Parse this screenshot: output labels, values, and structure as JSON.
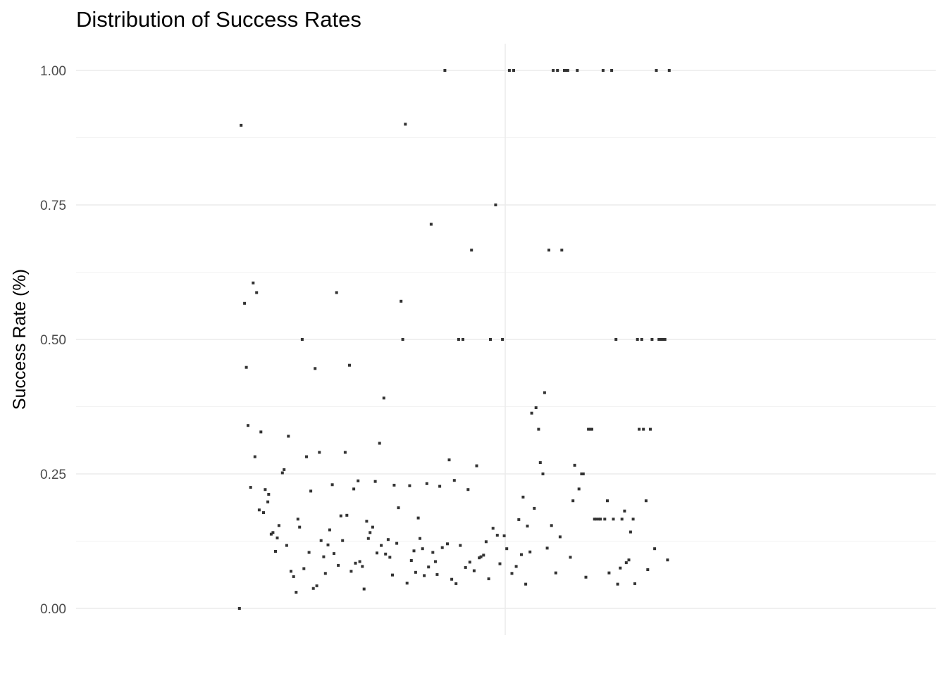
{
  "chart_data": {
    "type": "scatter",
    "title": "Distribution of Success Rates",
    "xlabel": "",
    "ylabel": "Success Rate (%)",
    "ylim": [
      -0.05,
      1.05
    ],
    "xlim": [
      0,
      1
    ],
    "y_ticks": [
      "0.00",
      "0.25",
      "0.50",
      "0.75",
      "1.00"
    ],
    "y_tick_values": [
      0,
      0.25,
      0.5,
      0.75,
      1
    ],
    "grid": true,
    "legend": "none",
    "point_color": "#333333",
    "x_note": "single jittered category; x values are jitter positions across the category width",
    "points": [
      [
        0.19,
        0.0
      ],
      [
        0.192,
        0.898
      ],
      [
        0.196,
        0.567
      ],
      [
        0.198,
        0.448
      ],
      [
        0.2,
        0.34
      ],
      [
        0.203,
        0.225
      ],
      [
        0.206,
        0.605
      ],
      [
        0.208,
        0.282
      ],
      [
        0.21,
        0.587
      ],
      [
        0.213,
        0.183
      ],
      [
        0.215,
        0.328
      ],
      [
        0.218,
        0.178
      ],
      [
        0.22,
        0.221
      ],
      [
        0.223,
        0.198
      ],
      [
        0.224,
        0.212
      ],
      [
        0.227,
        0.138
      ],
      [
        0.229,
        0.141
      ],
      [
        0.232,
        0.106
      ],
      [
        0.234,
        0.131
      ],
      [
        0.236,
        0.154
      ],
      [
        0.24,
        0.252
      ],
      [
        0.242,
        0.258
      ],
      [
        0.245,
        0.117
      ],
      [
        0.247,
        0.32
      ],
      [
        0.25,
        0.069
      ],
      [
        0.253,
        0.059
      ],
      [
        0.256,
        0.03
      ],
      [
        0.258,
        0.166
      ],
      [
        0.26,
        0.151
      ],
      [
        0.263,
        0.5
      ],
      [
        0.265,
        0.074
      ],
      [
        0.268,
        0.282
      ],
      [
        0.271,
        0.104
      ],
      [
        0.273,
        0.218
      ],
      [
        0.276,
        0.037
      ],
      [
        0.278,
        0.446
      ],
      [
        0.28,
        0.042
      ],
      [
        0.283,
        0.29
      ],
      [
        0.285,
        0.126
      ],
      [
        0.288,
        0.096
      ],
      [
        0.29,
        0.065
      ],
      [
        0.293,
        0.118
      ],
      [
        0.295,
        0.146
      ],
      [
        0.298,
        0.23
      ],
      [
        0.3,
        0.102
      ],
      [
        0.303,
        0.587
      ],
      [
        0.305,
        0.08
      ],
      [
        0.308,
        0.172
      ],
      [
        0.31,
        0.126
      ],
      [
        0.313,
        0.29
      ],
      [
        0.315,
        0.173
      ],
      [
        0.318,
        0.452
      ],
      [
        0.32,
        0.069
      ],
      [
        0.323,
        0.222
      ],
      [
        0.325,
        0.084
      ],
      [
        0.328,
        0.237
      ],
      [
        0.33,
        0.087
      ],
      [
        0.333,
        0.078
      ],
      [
        0.335,
        0.036
      ],
      [
        0.338,
        0.162
      ],
      [
        0.34,
        0.13
      ],
      [
        0.342,
        0.141
      ],
      [
        0.345,
        0.151
      ],
      [
        0.348,
        0.236
      ],
      [
        0.35,
        0.103
      ],
      [
        0.353,
        0.307
      ],
      [
        0.355,
        0.117
      ],
      [
        0.358,
        0.391
      ],
      [
        0.36,
        0.101
      ],
      [
        0.363,
        0.128
      ],
      [
        0.365,
        0.095
      ],
      [
        0.368,
        0.062
      ],
      [
        0.37,
        0.229
      ],
      [
        0.373,
        0.121
      ],
      [
        0.375,
        0.187
      ],
      [
        0.378,
        0.571
      ],
      [
        0.38,
        0.5
      ],
      [
        0.383,
        0.9
      ],
      [
        0.385,
        0.047
      ],
      [
        0.388,
        0.228
      ],
      [
        0.39,
        0.089
      ],
      [
        0.393,
        0.107
      ],
      [
        0.395,
        0.067
      ],
      [
        0.398,
        0.168
      ],
      [
        0.4,
        0.13
      ],
      [
        0.403,
        0.111
      ],
      [
        0.405,
        0.061
      ],
      [
        0.408,
        0.232
      ],
      [
        0.41,
        0.077
      ],
      [
        0.413,
        0.714
      ],
      [
        0.415,
        0.104
      ],
      [
        0.418,
        0.087
      ],
      [
        0.42,
        0.063
      ],
      [
        0.423,
        0.227
      ],
      [
        0.426,
        0.113
      ],
      [
        0.429,
        1.0
      ],
      [
        0.432,
        0.12
      ],
      [
        0.434,
        0.276
      ],
      [
        0.437,
        0.054
      ],
      [
        0.44,
        0.238
      ],
      [
        0.442,
        0.046
      ],
      [
        0.445,
        0.5
      ],
      [
        0.447,
        0.117
      ],
      [
        0.45,
        0.5
      ],
      [
        0.453,
        0.076
      ],
      [
        0.456,
        0.221
      ],
      [
        0.458,
        0.086
      ],
      [
        0.46,
        0.666
      ],
      [
        0.463,
        0.07
      ],
      [
        0.466,
        0.265
      ],
      [
        0.469,
        0.094
      ],
      [
        0.471,
        0.096
      ],
      [
        0.474,
        0.099
      ],
      [
        0.477,
        0.124
      ],
      [
        0.48,
        0.055
      ],
      [
        0.482,
        0.5
      ],
      [
        0.485,
        0.149
      ],
      [
        0.488,
        0.75
      ],
      [
        0.49,
        0.136
      ],
      [
        0.493,
        0.083
      ],
      [
        0.496,
        0.5
      ],
      [
        0.498,
        0.135
      ],
      [
        0.501,
        0.111
      ],
      [
        0.504,
        1.0
      ],
      [
        0.507,
        0.065
      ],
      [
        0.509,
        1.0
      ],
      [
        0.512,
        0.078
      ],
      [
        0.515,
        0.165
      ],
      [
        0.518,
        0.1
      ],
      [
        0.52,
        0.207
      ],
      [
        0.523,
        0.045
      ],
      [
        0.525,
        0.153
      ],
      [
        0.528,
        0.105
      ],
      [
        0.53,
        0.363
      ],
      [
        0.533,
        0.186
      ],
      [
        0.535,
        0.373
      ],
      [
        0.538,
        0.333
      ],
      [
        0.54,
        0.271
      ],
      [
        0.543,
        0.25
      ],
      [
        0.545,
        0.401
      ],
      [
        0.548,
        0.112
      ],
      [
        0.55,
        0.666
      ],
      [
        0.553,
        0.154
      ],
      [
        0.555,
        1.0
      ],
      [
        0.558,
        0.066
      ],
      [
        0.56,
        1.0
      ],
      [
        0.563,
        0.133
      ],
      [
        0.565,
        0.666
      ],
      [
        0.568,
        1.0
      ],
      [
        0.57,
        1.0
      ],
      [
        0.572,
        1.0
      ],
      [
        0.575,
        0.095
      ],
      [
        0.578,
        0.2
      ],
      [
        0.58,
        0.266
      ],
      [
        0.583,
        1.0
      ],
      [
        0.585,
        0.222
      ],
      [
        0.588,
        0.25
      ],
      [
        0.59,
        0.25
      ],
      [
        0.593,
        0.058
      ],
      [
        0.596,
        0.333
      ],
      [
        0.598,
        0.333
      ],
      [
        0.6,
        0.333
      ],
      [
        0.603,
        0.166
      ],
      [
        0.605,
        0.166
      ],
      [
        0.608,
        0.166
      ],
      [
        0.61,
        0.166
      ],
      [
        0.613,
        1.0
      ],
      [
        0.615,
        0.166
      ],
      [
        0.618,
        0.2
      ],
      [
        0.62,
        0.066
      ],
      [
        0.623,
        1.0
      ],
      [
        0.625,
        0.166
      ],
      [
        0.628,
        0.5
      ],
      [
        0.63,
        0.045
      ],
      [
        0.633,
        0.075
      ],
      [
        0.635,
        0.166
      ],
      [
        0.638,
        0.181
      ],
      [
        0.64,
        0.085
      ],
      [
        0.643,
        0.09
      ],
      [
        0.645,
        0.142
      ],
      [
        0.648,
        0.166
      ],
      [
        0.65,
        0.046
      ],
      [
        0.653,
        0.5
      ],
      [
        0.655,
        0.333
      ],
      [
        0.658,
        0.5
      ],
      [
        0.66,
        0.333
      ],
      [
        0.663,
        0.2
      ],
      [
        0.665,
        0.072
      ],
      [
        0.668,
        0.333
      ],
      [
        0.67,
        0.5
      ],
      [
        0.673,
        0.111
      ],
      [
        0.675,
        1.0
      ],
      [
        0.678,
        0.5
      ],
      [
        0.68,
        0.5
      ],
      [
        0.683,
        0.5
      ],
      [
        0.685,
        0.5
      ],
      [
        0.688,
        0.09
      ],
      [
        0.69,
        1.0
      ]
    ]
  }
}
